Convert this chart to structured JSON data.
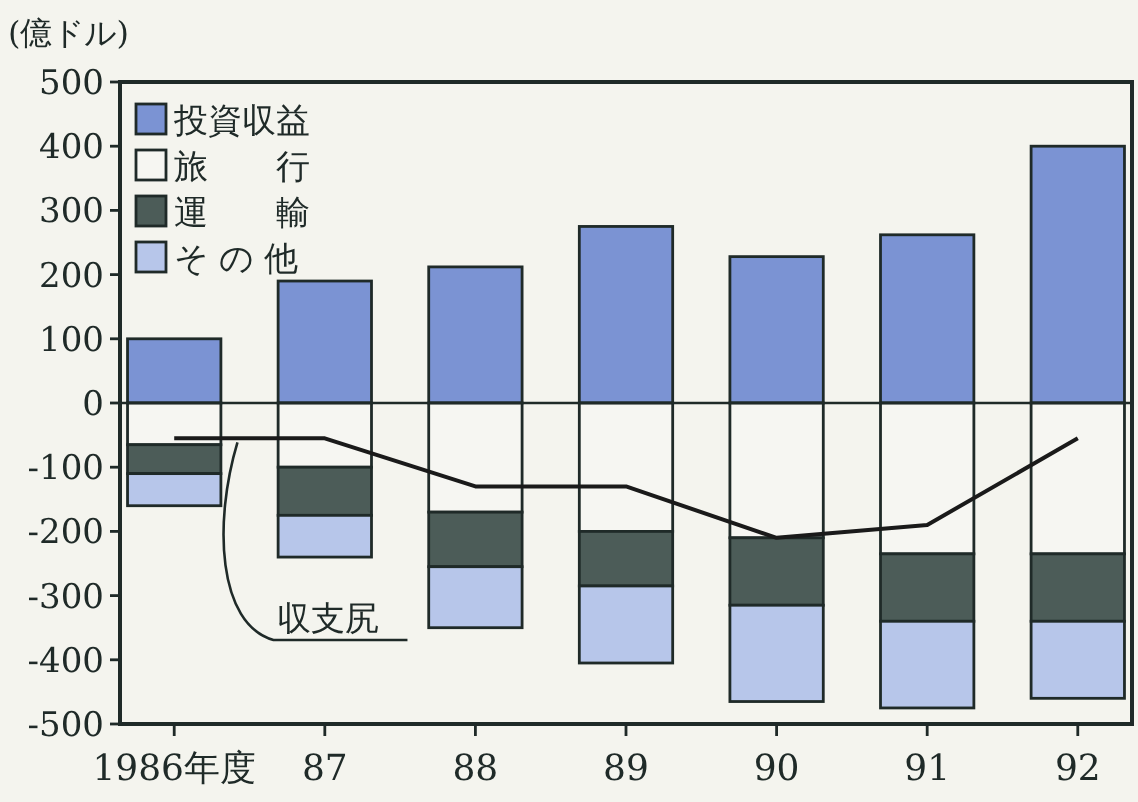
{
  "chart_data": {
    "type": "bar",
    "stacked": true,
    "ylabel": "(億ドル)",
    "categories": [
      "1986年度",
      "87",
      "88",
      "89",
      "90",
      "91",
      "92"
    ],
    "series": [
      {
        "name": "投資収益",
        "color": "#7b93d3",
        "values": [
          100,
          190,
          212,
          275,
          228,
          262,
          400
        ]
      },
      {
        "name": "旅　　行",
        "color": "#f6f6f2",
        "values": [
          -65,
          -100,
          -170,
          -200,
          -210,
          -235,
          -235
        ]
      },
      {
        "name": "運　　輸",
        "color": "#4c5c58",
        "values": [
          -45,
          -75,
          -85,
          -85,
          -105,
          -105,
          -105
        ]
      },
      {
        "name": "そ の 他",
        "color": "#b7c6ea",
        "values": [
          -50,
          -65,
          -95,
          -120,
          -150,
          -135,
          -120
        ]
      },
      {
        "name": "収支尻",
        "type": "line",
        "color": "#1a1a1a",
        "values": [
          -55,
          -55,
          -130,
          -130,
          -210,
          -190,
          -55
        ]
      }
    ],
    "ylim": [
      -500,
      500
    ],
    "yticks": [
      -500,
      -400,
      -300,
      -200,
      -100,
      0,
      100,
      200,
      300,
      400,
      500
    ],
    "ref_lines": [
      {
        "axis": "y",
        "value": 0
      }
    ],
    "legend": "top left",
    "marker": "none",
    "line_style": "solid",
    "grid": false
  }
}
